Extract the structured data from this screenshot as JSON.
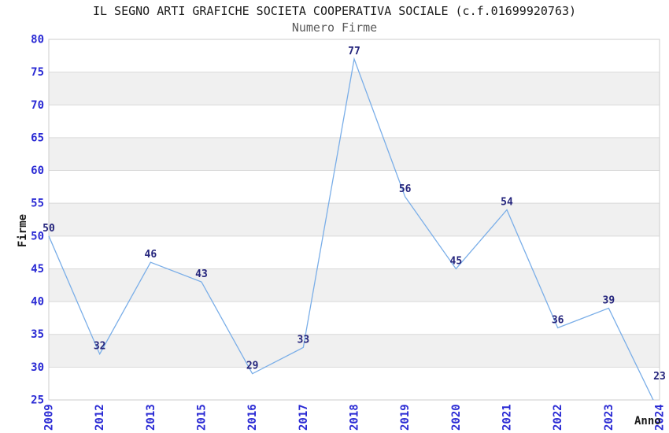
{
  "chart_data": {
    "type": "line",
    "title": "IL SEGNO ARTI GRAFICHE SOCIETA COOPERATIVA SOCIALE (c.f.01699920763)",
    "subtitle": "Numero Firme",
    "xlabel": "Anno",
    "ylabel": "Firme",
    "categories": [
      "2009",
      "2012",
      "2013",
      "2015",
      "2016",
      "2017",
      "2018",
      "2019",
      "2020",
      "2021",
      "2022",
      "2023",
      "2024"
    ],
    "values": [
      50,
      32,
      46,
      43,
      29,
      33,
      77,
      56,
      45,
      54,
      36,
      39,
      23
    ],
    "ylim": [
      25,
      80
    ],
    "yticks": [
      25,
      30,
      35,
      40,
      45,
      50,
      55,
      60,
      65,
      70,
      75,
      80
    ],
    "grid": "horizontal",
    "background_bands": "alternating-gray-white",
    "legend": "none",
    "markers": "none",
    "data_labels_shown": true,
    "colors": {
      "line": "#7aaee8",
      "data_label": "#24247c",
      "tick_label": "#2a2ad4",
      "title": "#1a1a1a",
      "subtitle": "#5a5a5a",
      "axis_title": "#1a1a1a",
      "band_gray": "#f0f0f0",
      "band_white": "#ffffff",
      "gridline": "#d9d9d9",
      "plot_border": "#cccccc",
      "background": "#ffffff"
    }
  }
}
